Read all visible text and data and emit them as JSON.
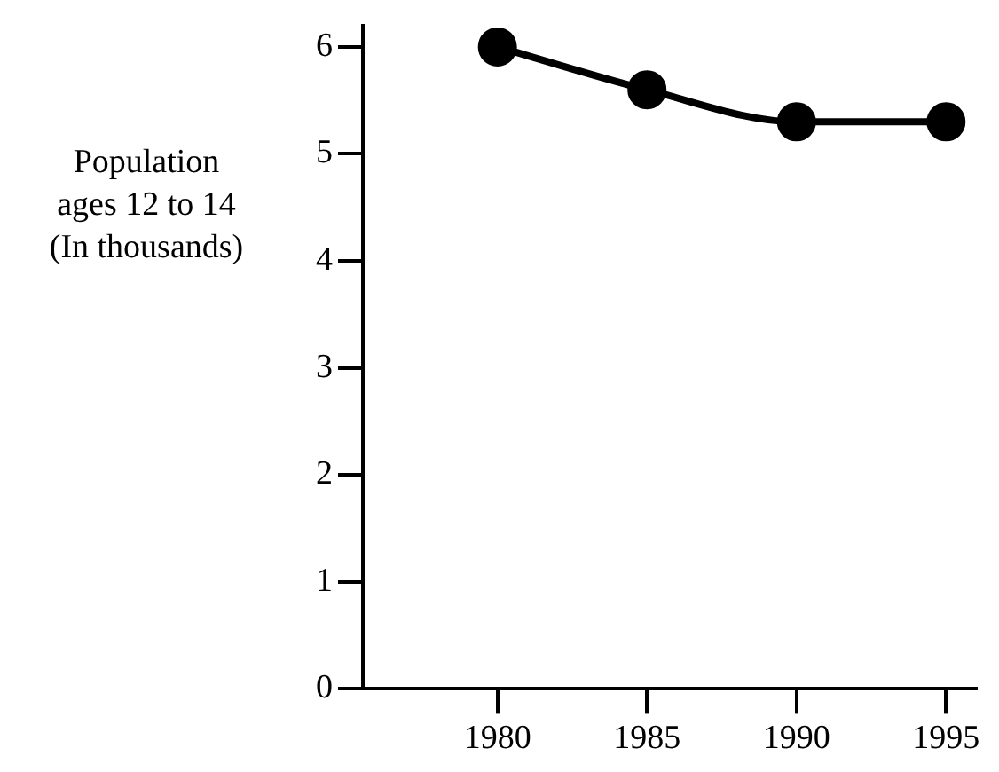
{
  "chart_data": {
    "type": "line",
    "ylabel": "Population\nages 12 to 14\n(In thousands)",
    "x": [
      1980,
      1985,
      1990,
      1995
    ],
    "values": [
      6.0,
      5.6,
      5.3,
      5.3
    ],
    "color": "#000000",
    "xlim": [
      1975.5,
      1996
    ],
    "xticks": [
      1980,
      1985,
      1990,
      1995
    ],
    "ylim": [
      0,
      6.2
    ],
    "yticks": [
      0,
      1,
      2,
      3,
      4,
      5,
      6
    ],
    "grid": false,
    "legend": false,
    "marker": "circle",
    "line_style": "solid"
  }
}
